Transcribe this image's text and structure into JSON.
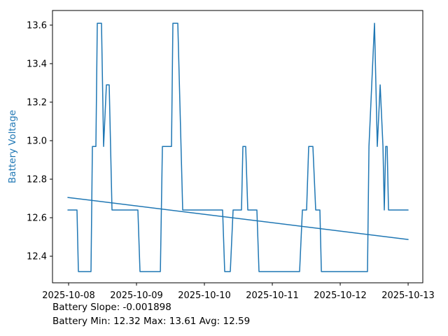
{
  "chart_data": {
    "type": "line",
    "title": "",
    "xlabel": "",
    "ylabel": "Battery Voltage",
    "line_color": "#1f77b4",
    "axis_color": "#000000",
    "grid": false,
    "legend": "none",
    "x_tick_labels": [
      "2025-10-08",
      "2025-10-09",
      "2025-10-10",
      "2025-10-11",
      "2025-10-12",
      "2025-10-13"
    ],
    "x_tick_days": [
      0,
      1,
      2,
      3,
      4,
      5
    ],
    "y_ticks": [
      12.4,
      12.6,
      12.8,
      13.0,
      13.2,
      13.4,
      13.6
    ],
    "xlim_days": [
      -0.237,
      5.216
    ],
    "ylim": [
      12.262,
      13.676
    ],
    "series": [
      {
        "name": "Battery Voltage",
        "points": [
          [
            -0.01,
            12.64
          ],
          [
            0.124,
            12.64
          ],
          [
            0.144,
            12.32
          ],
          [
            0.33,
            12.32
          ],
          [
            0.351,
            12.97
          ],
          [
            0.402,
            12.97
          ],
          [
            0.423,
            13.61
          ],
          [
            0.485,
            13.61
          ],
          [
            0.515,
            12.97
          ],
          [
            0.557,
            13.29
          ],
          [
            0.598,
            13.29
          ],
          [
            0.639,
            12.64
          ],
          [
            1.021,
            12.64
          ],
          [
            1.052,
            12.32
          ],
          [
            1.351,
            12.32
          ],
          [
            1.381,
            12.97
          ],
          [
            1.515,
            12.97
          ],
          [
            1.536,
            13.61
          ],
          [
            1.608,
            13.61
          ],
          [
            1.68,
            12.64
          ],
          [
            2.268,
            12.64
          ],
          [
            2.299,
            12.32
          ],
          [
            2.381,
            12.32
          ],
          [
            2.423,
            12.64
          ],
          [
            2.546,
            12.64
          ],
          [
            2.567,
            12.97
          ],
          [
            2.608,
            12.97
          ],
          [
            2.639,
            12.64
          ],
          [
            2.773,
            12.64
          ],
          [
            2.804,
            12.32
          ],
          [
            3.402,
            12.32
          ],
          [
            3.443,
            12.64
          ],
          [
            3.505,
            12.64
          ],
          [
            3.536,
            12.97
          ],
          [
            3.598,
            12.97
          ],
          [
            3.639,
            12.64
          ],
          [
            3.701,
            12.64
          ],
          [
            3.722,
            12.32
          ],
          [
            4.402,
            12.32
          ],
          [
            4.423,
            12.97
          ],
          [
            4.505,
            13.61
          ],
          [
            4.546,
            12.97
          ],
          [
            4.588,
            13.29
          ],
          [
            4.629,
            12.97
          ],
          [
            4.649,
            12.64
          ],
          [
            4.67,
            12.97
          ],
          [
            4.691,
            12.97
          ],
          [
            4.711,
            12.64
          ],
          [
            5.0,
            12.64
          ]
        ]
      },
      {
        "name": "Trend",
        "points": [
          [
            -0.01,
            12.705
          ],
          [
            5.0,
            12.487
          ]
        ]
      }
    ],
    "annotations": [
      "Battery Slope: -0.001898",
      "Battery Min: 12.32 Max: 13.61 Avg: 12.59"
    ],
    "stats": {
      "slope": -0.001898,
      "min": 12.32,
      "max": 13.61,
      "avg": 12.59
    }
  }
}
